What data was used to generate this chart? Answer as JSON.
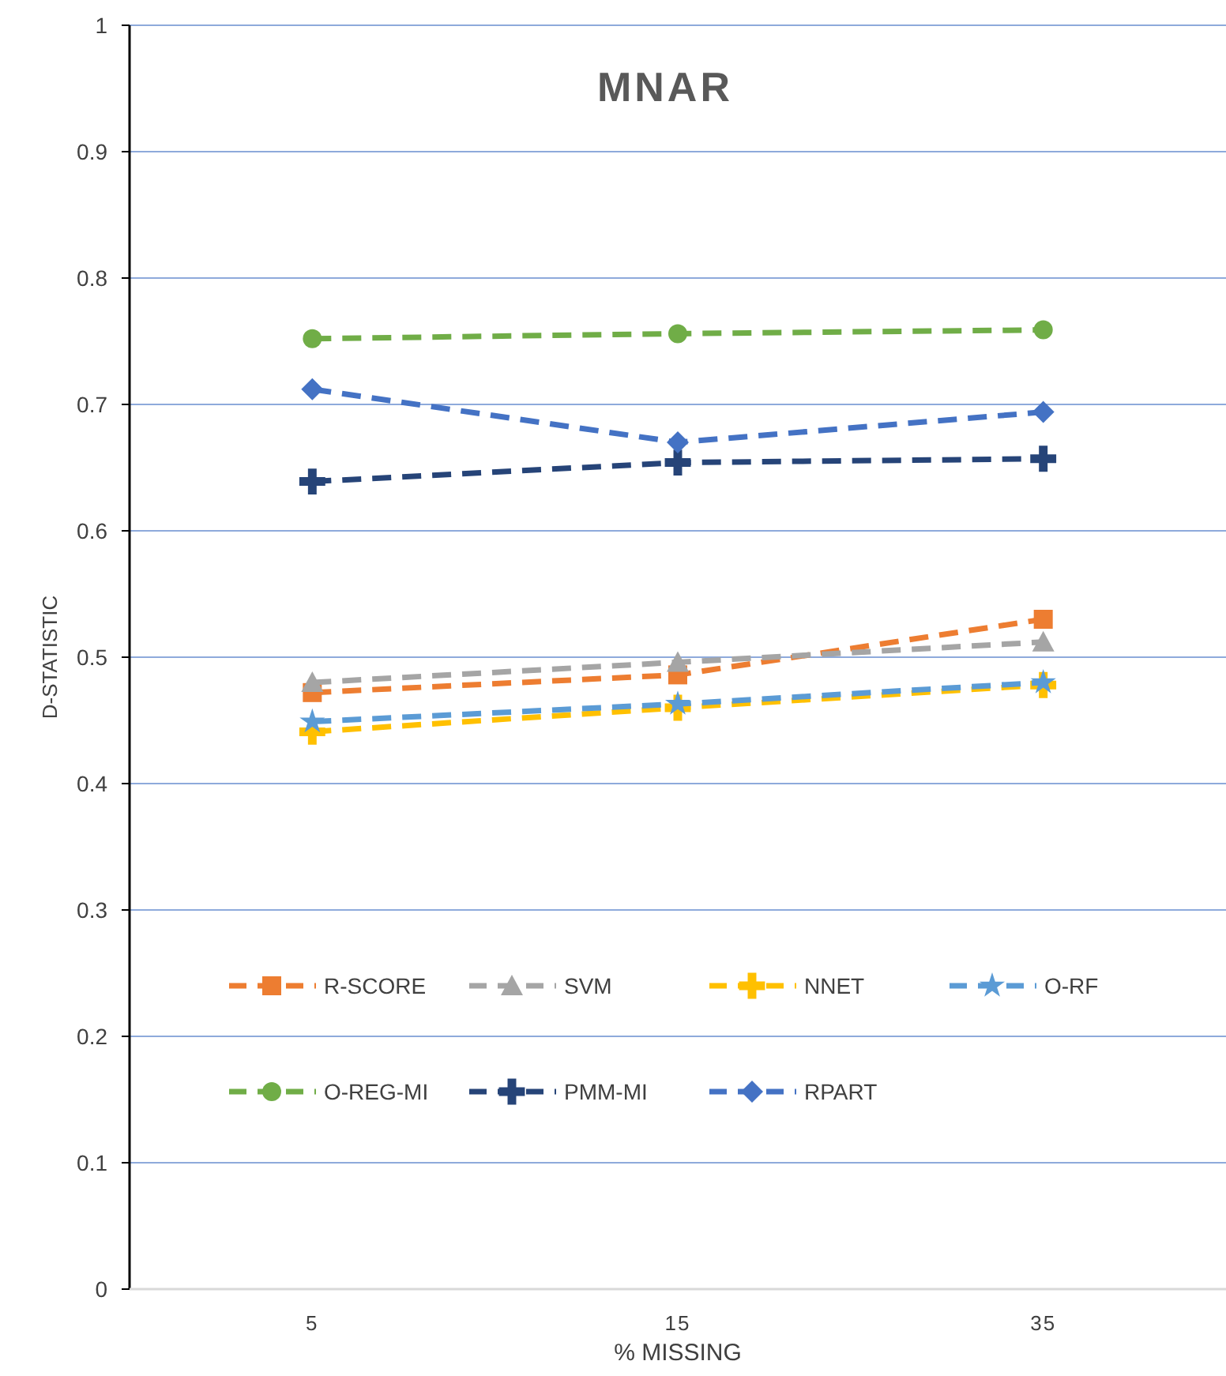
{
  "chart_data": {
    "type": "line",
    "title": "MNAR",
    "xlabel": "% MISSING",
    "ylabel": "D-STATISTIC",
    "categories": [
      "5",
      "15",
      "35"
    ],
    "ylim": [
      0,
      1
    ],
    "yticks": [
      0,
      0.1,
      0.2,
      0.3,
      0.4,
      0.5,
      0.6,
      0.7,
      0.8,
      0.9,
      1
    ],
    "grid": "y",
    "legend": "bottom",
    "line_style": "dashed",
    "series": [
      {
        "name": "R-SCORE",
        "color": "#ed7d31",
        "marker": "square",
        "values": [
          0.472,
          0.486,
          0.53
        ]
      },
      {
        "name": "SVM",
        "color": "#a5a5a5",
        "marker": "triangle",
        "values": [
          0.48,
          0.496,
          0.512
        ]
      },
      {
        "name": "NNET",
        "color": "#ffc000",
        "marker": "cross",
        "values": [
          0.441,
          0.46,
          0.478
        ]
      },
      {
        "name": "O-RF",
        "color": "#5b9bd5",
        "marker": "star",
        "values": [
          0.449,
          0.463,
          0.48
        ]
      },
      {
        "name": "O-REG-MI",
        "color": "#70ad47",
        "marker": "circle",
        "values": [
          0.752,
          0.756,
          0.759
        ]
      },
      {
        "name": "PMM-MI",
        "color": "#264478",
        "marker": "cross",
        "values": [
          0.639,
          0.654,
          0.657
        ]
      },
      {
        "name": "RPART",
        "color": "#4472c4",
        "marker": "diamond",
        "values": [
          0.712,
          0.67,
          0.694
        ]
      }
    ]
  }
}
